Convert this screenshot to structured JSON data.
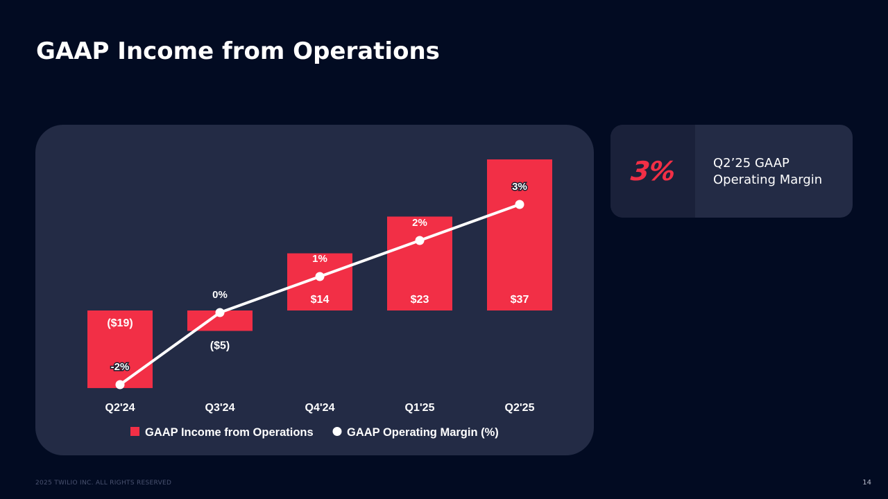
{
  "slide": {
    "title": "GAAP Income from Operations",
    "footer_copyright": "2025 TWILIO INC. ALL RIGHTS RESERVED",
    "page_number": "14"
  },
  "kpi_card": {
    "value": "3%",
    "label": "Q2’25 GAAP Operating Margin"
  },
  "colors": {
    "background": "#020b22",
    "panel": "#232b45",
    "bar": "#f22f46",
    "line": "#ffffff",
    "text": "#ffffff"
  },
  "chart_data": {
    "type": "bar",
    "categories": [
      "Q2'24",
      "Q3'24",
      "Q4'24",
      "Q1'25",
      "Q2'25"
    ],
    "series": [
      {
        "name": "GAAP Income from Operations",
        "type": "bar",
        "values": [
          -19,
          -5,
          14,
          23,
          37
        ],
        "labels": [
          "($19)",
          "($5)",
          "$14",
          "$23",
          "$37"
        ]
      },
      {
        "name": "GAAP Operating Margin (%)",
        "type": "line",
        "values": [
          -2,
          0,
          1,
          2,
          3
        ],
        "labels": [
          "-2%",
          "0%",
          "1%",
          "2%",
          "3%"
        ]
      }
    ],
    "legend_position": "bottom",
    "grid": false
  }
}
